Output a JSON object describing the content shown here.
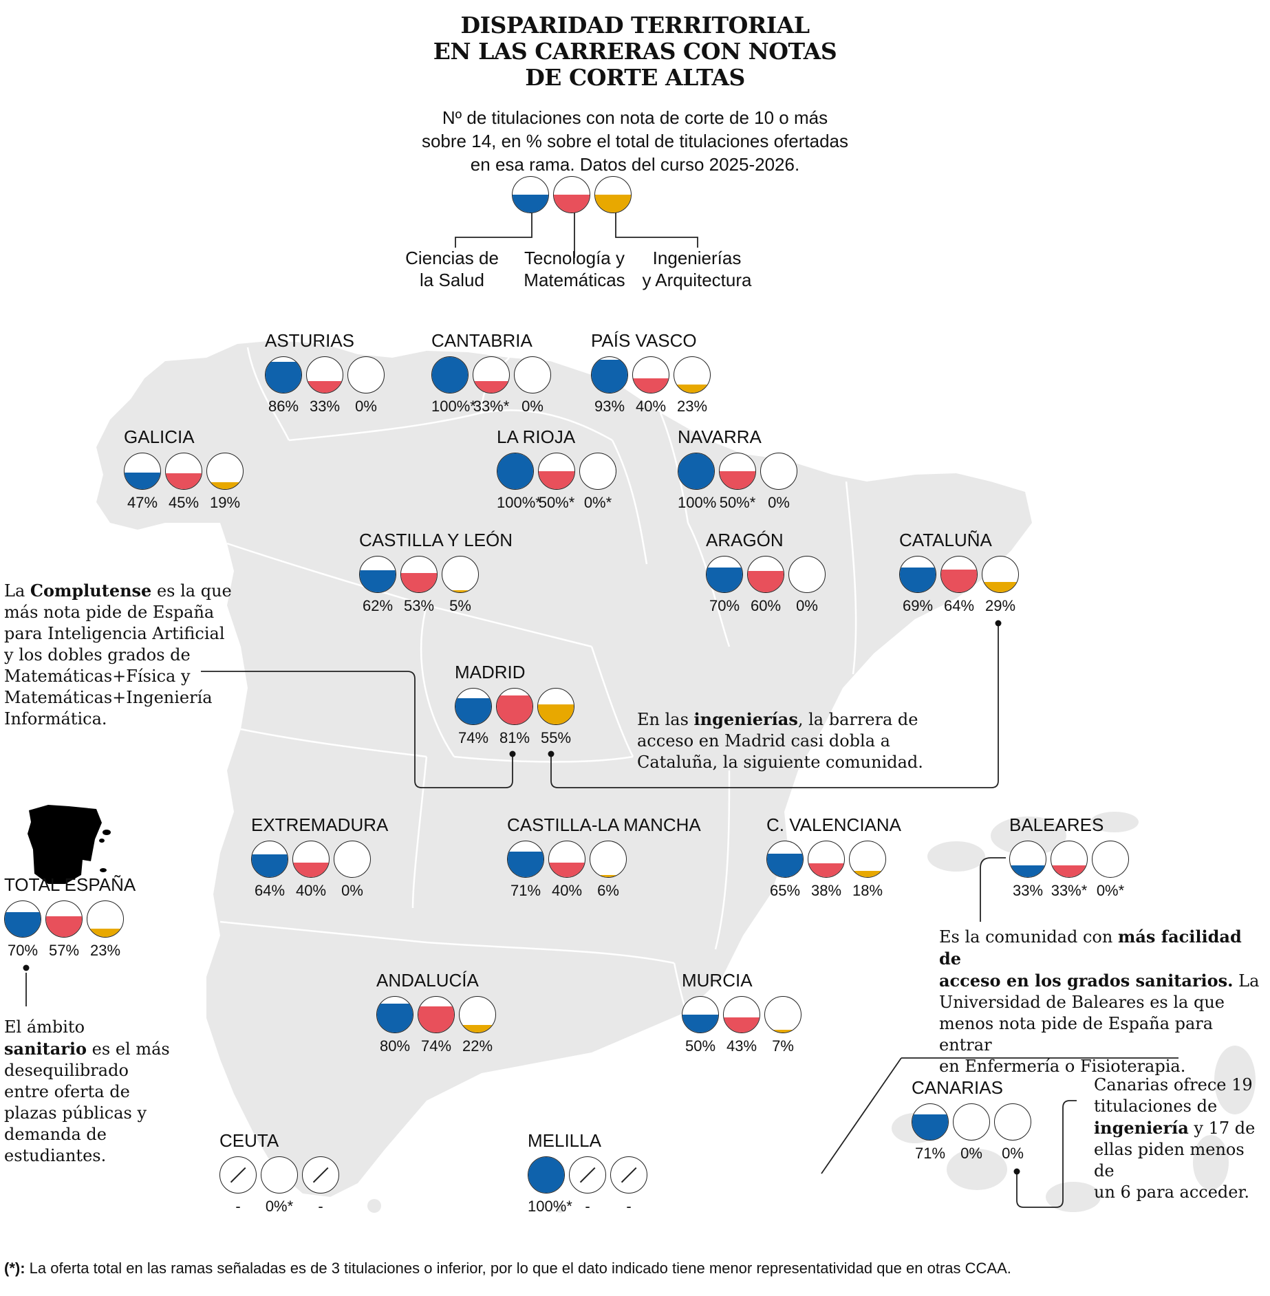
{
  "title": "DISPARIDAD TERRITORIAL\nEN LAS CARRERAS CON NOTAS\nDE CORTE ALTAS",
  "subtitle": "Nº de titulaciones con nota de corte de 10 o más\nsobre 14, en % sobre el total de titulaciones ofertadas\nen esa rama. Datos del curso 2025-2026.",
  "colors": {
    "salud": "#0f62ac",
    "tecnologia": "#e8505b",
    "ingenierias": "#e8a800",
    "land": "#e8e8e8",
    "border": "#ffffff"
  },
  "legend": {
    "items": [
      {
        "label": "Ciencias de\nla Salud",
        "color": "#0f62ac"
      },
      {
        "label": "Tecnología y\nMatemáticas",
        "color": "#e8505b"
      },
      {
        "label": "Ingenierías\ny Arquitectura",
        "color": "#e8a800"
      }
    ]
  },
  "regions": [
    {
      "name": "ASTURIAS",
      "values": [
        86,
        33,
        0
      ],
      "labels": [
        "86%",
        "33%",
        "0%"
      ]
    },
    {
      "name": "CANTABRIA",
      "values": [
        100,
        33,
        0
      ],
      "labels": [
        "100%*",
        "33%*",
        "0%"
      ]
    },
    {
      "name": "PAÍS VASCO",
      "values": [
        93,
        40,
        23
      ],
      "labels": [
        "93%",
        "40%",
        "23%"
      ]
    },
    {
      "name": "GALICIA",
      "values": [
        47,
        45,
        19
      ],
      "labels": [
        "47%",
        "45%",
        "19%"
      ]
    },
    {
      "name": "LA RIOJA",
      "values": [
        100,
        50,
        0
      ],
      "labels": [
        "100%*",
        "50%*",
        "0%*"
      ]
    },
    {
      "name": "NAVARRA",
      "values": [
        100,
        50,
        0
      ],
      "labels": [
        "100%",
        "50%*",
        "0%"
      ]
    },
    {
      "name": "CASTILLA Y LEÓN",
      "values": [
        62,
        53,
        5
      ],
      "labels": [
        "62%",
        "53%",
        "5%"
      ]
    },
    {
      "name": "ARAGÓN",
      "values": [
        70,
        60,
        0
      ],
      "labels": [
        "70%",
        "60%",
        "0%"
      ]
    },
    {
      "name": "CATALUÑA",
      "values": [
        69,
        64,
        29
      ],
      "labels": [
        "69%",
        "64%",
        "29%"
      ]
    },
    {
      "name": "MADRID",
      "values": [
        74,
        81,
        55
      ],
      "labels": [
        "74%",
        "81%",
        "55%"
      ]
    },
    {
      "name": "EXTREMADURA",
      "values": [
        64,
        40,
        0
      ],
      "labels": [
        "64%",
        "40%",
        "0%"
      ]
    },
    {
      "name": "CASTILLA-LA MANCHA",
      "values": [
        71,
        40,
        6
      ],
      "labels": [
        "71%",
        "40%",
        "6%"
      ]
    },
    {
      "name": "C. VALENCIANA",
      "values": [
        65,
        38,
        18
      ],
      "labels": [
        "65%",
        "38%",
        "18%"
      ]
    },
    {
      "name": "BALEARES",
      "values": [
        33,
        33,
        0
      ],
      "labels": [
        "33%",
        "33%*",
        "0%*"
      ]
    },
    {
      "name": "TOTAL ESPAÑA",
      "values": [
        70,
        57,
        23
      ],
      "labels": [
        "70%",
        "57%",
        "23%"
      ]
    },
    {
      "name": "ANDALUCÍA",
      "values": [
        80,
        74,
        22
      ],
      "labels": [
        "80%",
        "74%",
        "22%"
      ]
    },
    {
      "name": "MURCIA",
      "values": [
        50,
        43,
        7
      ],
      "labels": [
        "50%",
        "43%",
        "7%"
      ]
    },
    {
      "name": "CANARIAS",
      "values": [
        71,
        0,
        0
      ],
      "labels": [
        "71%",
        "0%",
        "0%"
      ]
    },
    {
      "name": "CEUTA",
      "values": [
        null,
        0,
        null
      ],
      "labels": [
        "-",
        "0%*",
        "-"
      ]
    },
    {
      "name": "MELILLA",
      "values": [
        100,
        null,
        null
      ],
      "labels": [
        "100%*",
        "-",
        "-"
      ]
    }
  ],
  "notes": {
    "complutense": "La <b>Complutense</b> es la que\nmás nota pide de España\npara Inteligencia Artificial\ny los dobles grados de\nMatemáticas+Física y\nMatemáticas+Ingeniería\nInformática.",
    "ingenierias": "En las <b>ingenierías</b>, la barrera de\nacceso en Madrid casi dobla a\nCataluña, la siguiente comunidad.",
    "baleares": "Es la comunidad con <b>más facilidad de\nacceso en los grados sanitarios.</b> La\nUniversidad de Baleares es la que\nmenos nota pide de España para entrar\nen Enfermería o Fisioterapia.",
    "sanitario": "El ámbito\n<b>sanitario</b> es el más\ndesequilibrado\nentre oferta de\nplazas públicas y\ndemanda de\nestudiantes.",
    "canarias": "Canarias ofrece 19\ntitulaciones de\n<b>ingeniería</b> y 17 de\nellas piden menos de\nun 6 para acceder."
  },
  "footnote": {
    "mark": "(*):",
    "text": " La oferta total en las ramas señaladas es de 3 titulaciones o inferior, por lo que el dato indicado tiene menor representatividad que en otras CCAA."
  }
}
